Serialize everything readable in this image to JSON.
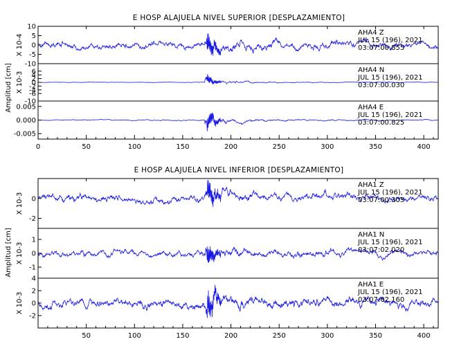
{
  "chart_data": [
    {
      "type": "line",
      "title": "E HOSP ALAJUELA NIVEL SUPERIOR [DESPLAZAMIENTO]",
      "ylabel": "Amplitud [cm]",
      "xlim": [
        0,
        415
      ],
      "x_ticks": [
        "0",
        "50",
        "100",
        "150",
        "200",
        "250",
        "300",
        "350",
        "400"
      ],
      "event_time_s": 175,
      "series": [
        {
          "name": "AHA4 Z",
          "channel": "Z",
          "scale_label": "X 10-4",
          "ylim": [
            -10,
            10
          ],
          "y_ticks": [
            "10",
            "5",
            "0",
            "-5",
            "-10"
          ],
          "peak": 10,
          "annotations": [
            "AHA4 Z",
            "JUL 15 (196), 2021",
            "03:07:00.855"
          ]
        },
        {
          "name": "AHA4 N",
          "channel": "N",
          "scale_label": "X 10-3",
          "ylim": [
            -10,
            10
          ],
          "y_ticks": [
            "6",
            "4",
            "2",
            "0",
            "-2",
            "-4",
            "-6",
            "-10"
          ],
          "peak": 4,
          "annotations": [
            "AHA4 N",
            "JUL 15 (196), 2021",
            "03:07:00.030"
          ]
        },
        {
          "name": "AHA4 E",
          "channel": "E",
          "scale_label": "",
          "ylim": [
            -0.007,
            0.007
          ],
          "y_ticks": [
            "0.005",
            "0.000",
            "-0.005"
          ],
          "peak": 0.005,
          "annotations": [
            "AHA4 E",
            "JUL 15 (196), 2021",
            "03:07:00.825"
          ]
        }
      ]
    },
    {
      "type": "line",
      "title": "E HOSP ALAJUELA NIVEL INFERIOR [DESPLAZAMIENTO]",
      "ylabel": "Amplitud [cm]",
      "xlim": [
        0,
        415
      ],
      "x_ticks": [
        "50",
        "100",
        "150",
        "200",
        "250",
        "300",
        "350",
        "400"
      ],
      "event_time_s": 175,
      "series": [
        {
          "name": "AHA1 Z",
          "channel": "Z",
          "scale_label": "X 10-3",
          "ylim": [
            -3,
            2
          ],
          "y_ticks": [
            "0",
            "-2"
          ],
          "peak": 2,
          "annotations": [
            "AHA1 Z",
            "JUL 15 (196), 2021",
            "03:07:00.305"
          ]
        },
        {
          "name": "AHA1 N",
          "channel": "N",
          "scale_label": "X 10-3",
          "ylim": [
            -1.8,
            1.8
          ],
          "y_ticks": [
            "1",
            "0",
            "-1"
          ],
          "peak": 1.3,
          "annotations": [
            "AHA1 N",
            "JUL 15 (196), 2021",
            "03:07:02.020"
          ]
        },
        {
          "name": "AHA1 E",
          "channel": "E",
          "scale_label": "X 10-3",
          "ylim": [
            -4,
            4
          ],
          "y_ticks": [
            "4",
            "2",
            "0",
            "-2"
          ],
          "peak": 4,
          "annotations": [
            "AHA1 E",
            "JUL 15 (196), 2021",
            "03:07:02.160"
          ]
        }
      ]
    }
  ],
  "colors": {
    "trace": "#1a1ae6",
    "axes": "#000000",
    "background": "#ffffff"
  }
}
